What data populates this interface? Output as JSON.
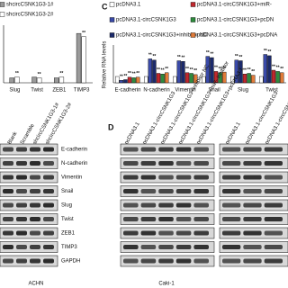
{
  "chart_data": [
    {
      "type": "bar",
      "categories": [
        "Slug",
        "Twist",
        "ZEB1",
        "TIMP3"
      ],
      "series": [
        {
          "name": "shcircCSNK1G3-1#",
          "color": "#9a9a9a",
          "values": [
            0.3,
            0.35,
            0.3,
            3.0
          ]
        },
        {
          "name": "shcircCSNK1G3-2#",
          "color": "#ffffff",
          "values": [
            0.35,
            0.3,
            0.35,
            2.8
          ]
        }
      ],
      "ylim": [
        0,
        3.5
      ],
      "sig_label": "**"
    },
    {
      "type": "bar",
      "panel_label": "C",
      "y_label": "Relative RNA levels",
      "categories": [
        "E-cadherin",
        "N-cadherin",
        "Vimentin",
        "Snail",
        "Slug",
        "Twist"
      ],
      "series": [
        {
          "name": "pcDNA3.1",
          "color": "#ffffff",
          "values": [
            1,
            1,
            1,
            1,
            1,
            1
          ]
        },
        {
          "name": "pcDNA3.1-circCSNK1G3",
          "color": "#3a4aa8",
          "values": [
            0.4,
            3.8,
            3.5,
            4.2,
            3.6,
            4.5
          ]
        },
        {
          "name": "pcDNA3.1-circCSNK1G3+inhibitor NC",
          "color": "#1c2a6b",
          "values": [
            0.5,
            3.6,
            3.4,
            4.0,
            3.5,
            4.3
          ]
        },
        {
          "name": "pcDNA3.1-circCSNK1G3+miR-",
          "color": "#c0282e",
          "values": [
            0.9,
            1.5,
            1.6,
            1.8,
            1.4,
            2.0
          ]
        },
        {
          "name": "pcDNA3.1-circCSNK1G3+pcDN",
          "color": "#2e8b3d",
          "values": [
            0.8,
            1.4,
            1.5,
            1.6,
            1.5,
            1.8
          ]
        },
        {
          "name": "pcDNA3.1-circCSNK1G3+pcDNA",
          "color": "#e07b39",
          "values": [
            0.9,
            1.6,
            1.3,
            1.7,
            1.2,
            1.6
          ]
        }
      ],
      "ylim": [
        0,
        6
      ],
      "sig_label": "**"
    }
  ],
  "blot_left": {
    "lanes": [
      "Blank",
      "Scramble",
      "shcircCSNK1G3-1#",
      "shcircCSNK1G3-2#"
    ],
    "proteins": [
      "E-cadherin",
      "N-cadherin",
      "Vimentin",
      "Snail",
      "Slug",
      "Twist",
      "ZEB1",
      "TIMP3",
      "GAPDH"
    ],
    "cell_line": "ACHN"
  },
  "blot_d": {
    "panel_label": "D",
    "lanes": [
      "pcDNA3.1",
      "pcDNA3.1-circCSNK1G3",
      "pcDNA3.1-circCSNK1G3+inhibitor NC",
      "pcDNA3.1-circCSNK1G3+miR- inhibitor",
      "pcDNA3.1-circCSNK1G3+pcDNA3.1",
      "pcDNA3.1",
      "pcDNA3.1-circCSNK1G3",
      "pcDNA3.1-circCSNK1G3+pcDNA3.1-TIMP3"
    ],
    "cell_line": "Caki-1"
  }
}
